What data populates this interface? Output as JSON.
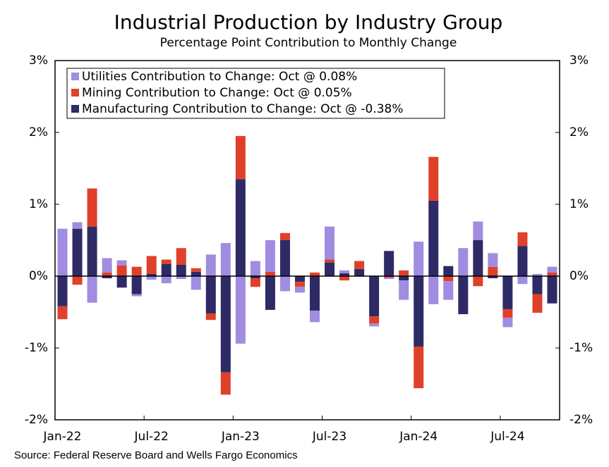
{
  "chart_data": {
    "type": "stacked_bar",
    "title": "Industrial Production by Industry Group",
    "subtitle": "Percentage Point Contribution to Monthly Change",
    "source": "Source: Federal Reserve Board and Wells Fargo Economics",
    "categories": [
      "Jan-22",
      null,
      null,
      null,
      null,
      null,
      "Jul-22",
      null,
      null,
      null,
      null,
      null,
      "Jan-23",
      null,
      null,
      null,
      null,
      null,
      "Jul-23",
      null,
      null,
      null,
      null,
      null,
      "Jan-24",
      null,
      null,
      null,
      null,
      null,
      "Jul-24",
      null,
      null,
      null
    ],
    "series": [
      {
        "name": "Utilities Contribution to Change: Oct @ 0.08%",
        "color": "#a08ce0",
        "values": [
          0.66,
          0.09,
          -0.37,
          0.2,
          0.07,
          -0.03,
          -0.05,
          -0.1,
          -0.04,
          -0.19,
          0.3,
          0.46,
          -0.94,
          0.21,
          0.44,
          -0.21,
          -0.08,
          -0.16,
          0.46,
          0.04,
          0,
          -0.04,
          -0.02,
          -0.27,
          0.48,
          -0.39,
          -0.26,
          0.39,
          0.26,
          0.19,
          -0.13,
          -0.11,
          0.03,
          0.08
        ]
      },
      {
        "name": "Mining Contribution to Change: Oct @ 0.05%",
        "color": "#e0402a",
        "values": [
          -0.18,
          -0.12,
          0.53,
          0.05,
          0.15,
          0.13,
          0.25,
          0.06,
          0.23,
          0.05,
          -0.09,
          -0.31,
          0.6,
          -0.12,
          0.06,
          0.1,
          -0.07,
          0.05,
          0.04,
          -0.06,
          0.11,
          -0.1,
          -0.02,
          0.08,
          -0.58,
          0.61,
          -0.07,
          0,
          -0.14,
          0.13,
          -0.12,
          0.19,
          -0.26,
          0.05
        ]
      },
      {
        "name": "Manufacturing Contribution to Change: Oct @ -0.38%",
        "color": "#2e2a66",
        "values": [
          -0.42,
          0.66,
          0.69,
          -0.03,
          -0.16,
          -0.25,
          0.03,
          0.17,
          0.16,
          0.06,
          -0.52,
          -1.34,
          1.35,
          -0.03,
          -0.47,
          0.5,
          -0.08,
          -0.48,
          0.19,
          0.04,
          0.1,
          -0.56,
          0.35,
          -0.06,
          -0.98,
          1.05,
          0.14,
          -0.53,
          0.5,
          -0.03,
          -0.46,
          0.42,
          -0.25,
          -0.38
        ]
      }
    ],
    "stack_order": [
      2,
      1,
      0
    ],
    "ylim": [
      -2,
      3
    ],
    "yticks": [
      {
        "value": -2,
        "label": "-2%"
      },
      {
        "value": -1,
        "label": "-1%"
      },
      {
        "value": 0,
        "label": "0%"
      },
      {
        "value": 1,
        "label": "1%"
      },
      {
        "value": 2,
        "label": "2%"
      },
      {
        "value": 3,
        "label": "3%"
      }
    ],
    "y2lim": [
      -2,
      3
    ],
    "y2ticks": [
      {
        "value": -2,
        "label": "-2%"
      },
      {
        "value": -1,
        "label": "-1%"
      },
      {
        "value": 0,
        "label": "0%"
      },
      {
        "value": 1,
        "label": "1%"
      },
      {
        "value": 2,
        "label": "2%"
      },
      {
        "value": 3,
        "label": "3%"
      }
    ],
    "grid": false,
    "legend": "upper left"
  }
}
